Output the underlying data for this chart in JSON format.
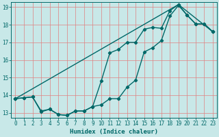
{
  "xlabel": "Humidex (Indice chaleur)",
  "xlim": [
    -0.5,
    23.5
  ],
  "ylim": [
    12.7,
    19.3
  ],
  "yticks": [
    13,
    14,
    15,
    16,
    17,
    18,
    19
  ],
  "xticks": [
    0,
    1,
    2,
    3,
    4,
    5,
    6,
    7,
    8,
    9,
    10,
    11,
    12,
    13,
    14,
    15,
    16,
    17,
    18,
    19,
    20,
    21,
    22,
    23
  ],
  "background_color": "#c8e8e8",
  "grid_color": "#e08080",
  "line_color": "#006868",
  "line1_x": [
    0,
    1,
    2,
    3,
    4,
    5,
    6,
    7,
    8,
    9,
    10,
    11,
    12,
    13,
    14,
    15,
    16,
    17,
    18,
    19,
    20,
    21,
    22,
    23
  ],
  "line1_y": [
    13.8,
    13.85,
    13.9,
    13.05,
    13.2,
    12.9,
    12.85,
    13.1,
    13.1,
    13.35,
    13.45,
    13.8,
    13.8,
    14.45,
    14.85,
    16.45,
    16.7,
    17.1,
    18.5,
    19.1,
    18.55,
    18.05,
    18.05,
    17.6
  ],
  "line2_x": [
    0,
    1,
    2,
    3,
    4,
    5,
    6,
    7,
    8,
    9,
    10,
    11,
    12,
    13,
    14,
    15,
    16,
    17,
    18,
    19,
    20,
    21,
    22,
    23
  ],
  "line2_y": [
    13.8,
    13.85,
    13.9,
    13.1,
    13.2,
    12.9,
    12.85,
    13.1,
    13.1,
    13.35,
    14.8,
    16.4,
    16.6,
    17.0,
    17.0,
    17.75,
    17.85,
    17.8,
    18.8,
    19.15,
    18.55,
    18.05,
    18.05,
    17.6
  ],
  "line3_x": [
    0,
    19,
    23
  ],
  "line3_y": [
    13.8,
    19.15,
    17.6
  ],
  "marker": "D",
  "markersize": 2.2,
  "linewidth": 1.0
}
